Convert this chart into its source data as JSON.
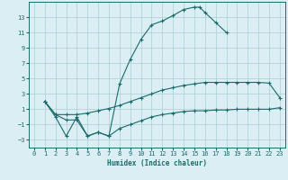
{
  "xlabel": "Humidex (Indice chaleur)",
  "bg_color": "#daeef3",
  "grid_color": "#aacdd6",
  "line_color": "#1a6b6b",
  "xlim": [
    -0.5,
    23.5
  ],
  "ylim": [
    -4,
    15
  ],
  "xticks": [
    0,
    1,
    2,
    3,
    4,
    5,
    6,
    7,
    8,
    9,
    10,
    11,
    12,
    13,
    14,
    15,
    16,
    17,
    18,
    19,
    20,
    21,
    22,
    23
  ],
  "yticks": [
    -3,
    -1,
    1,
    3,
    5,
    7,
    9,
    11,
    13
  ],
  "curve1_x": [
    1,
    2,
    3,
    4,
    5,
    6,
    7,
    8,
    9,
    10,
    11,
    12,
    13,
    14,
    15,
    15.5,
    16,
    17,
    18
  ],
  "curve1_y": [
    2,
    0,
    -2.5,
    0,
    -2.5,
    -2,
    -2.5,
    4.3,
    7.5,
    10.1,
    12.0,
    12.5,
    13.2,
    14.0,
    14.3,
    14.3,
    13.6,
    12.3,
    11.0
  ],
  "curve2_x": [
    1,
    2,
    3,
    4,
    5,
    6,
    7,
    8,
    9,
    10,
    11,
    12,
    13,
    14,
    15,
    16,
    17,
    18,
    19,
    20,
    21,
    22,
    23
  ],
  "curve2_y": [
    2,
    0.3,
    0.3,
    0.3,
    0.5,
    0.8,
    1.1,
    1.5,
    2.0,
    2.5,
    3.0,
    3.5,
    3.8,
    4.1,
    4.3,
    4.5,
    4.5,
    4.5,
    4.5,
    4.5,
    4.5,
    4.4,
    2.5
  ],
  "curve3_x": [
    1,
    2,
    3,
    4,
    5,
    6,
    7,
    8,
    9,
    10,
    11,
    12,
    13,
    14,
    15,
    16,
    17,
    18,
    19,
    20,
    21,
    22,
    23
  ],
  "curve3_y": [
    2,
    0.3,
    -0.4,
    -0.4,
    -2.5,
    -2.0,
    -2.5,
    -1.5,
    -1.0,
    -0.5,
    0.0,
    0.3,
    0.5,
    0.7,
    0.8,
    0.8,
    0.9,
    0.9,
    1.0,
    1.0,
    1.0,
    1.0,
    1.2
  ]
}
